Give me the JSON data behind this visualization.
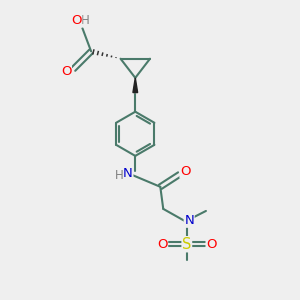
{
  "bg_color": "#efefef",
  "bond_color": "#4a7a6a",
  "bond_lw": 1.5,
  "atom_colors": {
    "O": "#ff0000",
    "N": "#0000cc",
    "S": "#cccc00",
    "H": "#808080",
    "C": "#000000"
  },
  "font_size": 8.5,
  "fig_size": [
    3.0,
    3.0
  ],
  "dpi": 100,
  "xlim": [
    0,
    10
  ],
  "ylim": [
    0,
    10
  ]
}
